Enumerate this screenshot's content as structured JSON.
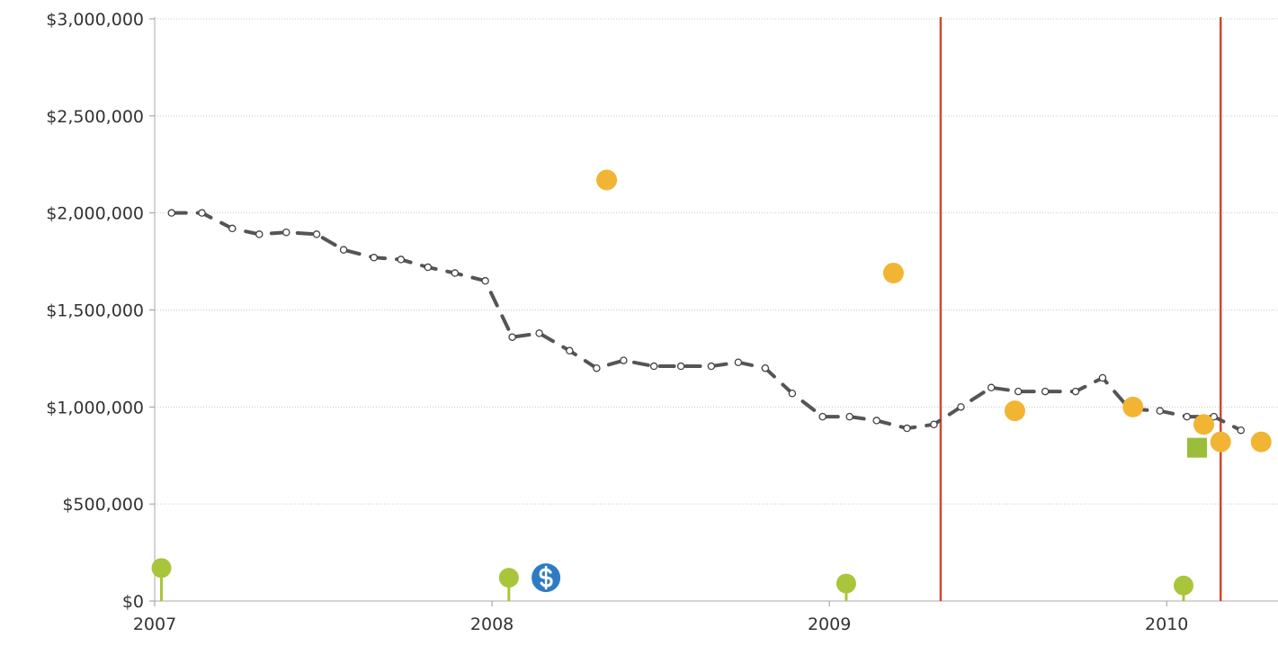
{
  "chart_data": {
    "type": "line",
    "title": "",
    "xlabel": "",
    "ylabel": "",
    "ylim": [
      0,
      3000000
    ],
    "xlim": [
      2007.0,
      2010.33
    ],
    "grid": true,
    "y_ticks": [
      {
        "value": 0,
        "label": "$0"
      },
      {
        "value": 500000,
        "label": "$500,000"
      },
      {
        "value": 1000000,
        "label": "$1,000,000"
      },
      {
        "value": 1500000,
        "label": "$1,500,000"
      },
      {
        "value": 2000000,
        "label": "$2,000,000"
      },
      {
        "value": 2500000,
        "label": "$2,500,000"
      },
      {
        "value": 3000000,
        "label": "$3,000,000"
      }
    ],
    "x_ticks": [
      {
        "value": 2007,
        "label": "2007"
      },
      {
        "value": 2008,
        "label": "2008"
      },
      {
        "value": 2009,
        "label": "2009"
      },
      {
        "value": 2010,
        "label": "2010"
      }
    ],
    "series": [
      {
        "style": "dashed-line-with-hollow-markers",
        "color": "#555555",
        "points": [
          [
            2007.05,
            2000000
          ],
          [
            2007.14,
            2000000
          ],
          [
            2007.23,
            1920000
          ],
          [
            2007.31,
            1890000
          ],
          [
            2007.39,
            1900000
          ],
          [
            2007.48,
            1890000
          ],
          [
            2007.56,
            1810000
          ],
          [
            2007.65,
            1770000
          ],
          [
            2007.73,
            1760000
          ],
          [
            2007.81,
            1720000
          ],
          [
            2007.89,
            1690000
          ],
          [
            2007.98,
            1650000
          ],
          [
            2008.06,
            1360000
          ],
          [
            2008.14,
            1380000
          ],
          [
            2008.23,
            1290000
          ],
          [
            2008.31,
            1200000
          ],
          [
            2008.39,
            1240000
          ],
          [
            2008.48,
            1210000
          ],
          [
            2008.56,
            1210000
          ],
          [
            2008.65,
            1210000
          ],
          [
            2008.73,
            1230000
          ],
          [
            2008.81,
            1200000
          ],
          [
            2008.89,
            1070000
          ],
          [
            2008.98,
            950000
          ],
          [
            2009.06,
            950000
          ],
          [
            2009.14,
            930000
          ],
          [
            2009.23,
            890000
          ],
          [
            2009.31,
            910000
          ],
          [
            2009.39,
            1000000
          ],
          [
            2009.48,
            1100000
          ],
          [
            2009.56,
            1080000
          ],
          [
            2009.64,
            1080000
          ],
          [
            2009.73,
            1080000
          ],
          [
            2009.81,
            1150000
          ],
          [
            2009.89,
            990000
          ],
          [
            2009.98,
            980000
          ],
          [
            2010.06,
            950000
          ],
          [
            2010.14,
            950000
          ],
          [
            2010.22,
            880000
          ]
        ]
      }
    ],
    "event_dots": {
      "color": "#F2B533",
      "points": [
        [
          2008.34,
          2170000
        ],
        [
          2009.19,
          1690000
        ],
        [
          2009.55,
          980000
        ],
        [
          2009.9,
          1000000
        ],
        [
          2010.11,
          910000
        ],
        [
          2010.16,
          820000
        ],
        [
          2010.28,
          820000
        ]
      ]
    },
    "square_markers": {
      "color": "#9BBD3A",
      "points": [
        [
          2010.09,
          790000
        ]
      ]
    },
    "pin_markers": {
      "color": "#A9C53A",
      "points": [
        [
          2007.02,
          170000
        ],
        [
          2008.05,
          120000
        ],
        [
          2009.05,
          90000
        ],
        [
          2010.05,
          80000
        ]
      ]
    },
    "dollar_markers": {
      "color": "#2E7BC4",
      "points": [
        [
          2008.16,
          120000
        ]
      ]
    },
    "vertical_lines": {
      "color": "#D0492B",
      "x": [
        2009.33,
        2010.16
      ]
    }
  }
}
